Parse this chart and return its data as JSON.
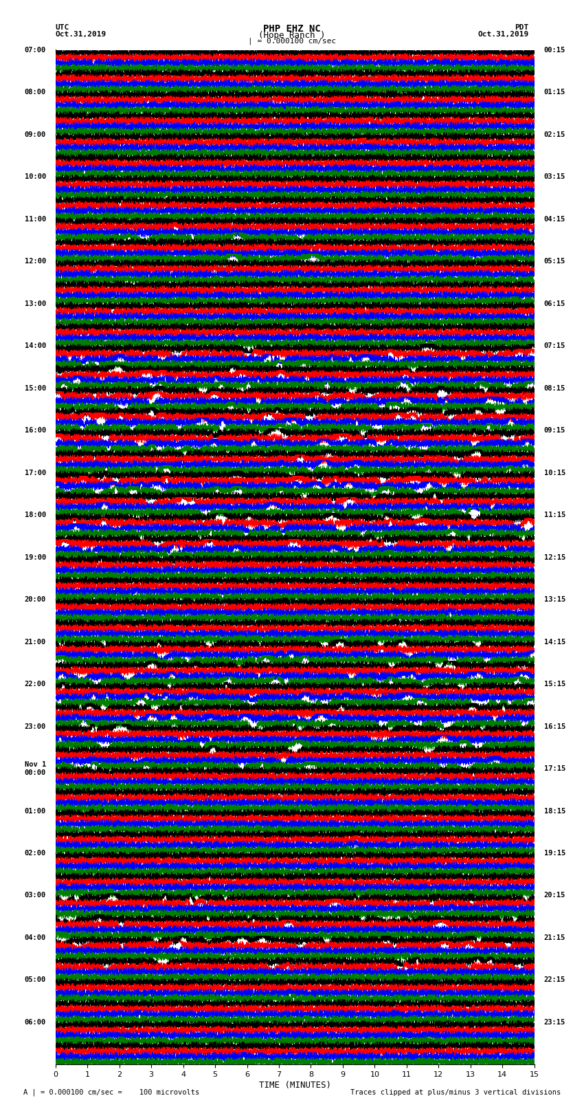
{
  "title_line1": "PHP EHZ NC",
  "title_line2": "(Hope Ranch )",
  "title_line3": "| = 0.000100 cm/sec",
  "label_utc": "UTC",
  "label_date_left": "Oct.31,2019",
  "label_pdt": "PDT",
  "label_date_right": "Oct.31,2019",
  "xlabel": "TIME (MINUTES)",
  "footer_left": "A | = 0.000100 cm/sec =    100 microvolts",
  "footer_right": "Traces clipped at plus/minus 3 vertical divisions",
  "left_times": [
    "07:00",
    "08:00",
    "09:00",
    "10:00",
    "11:00",
    "12:00",
    "13:00",
    "14:00",
    "15:00",
    "16:00",
    "17:00",
    "18:00",
    "19:00",
    "20:00",
    "21:00",
    "22:00",
    "23:00",
    "Nov 1\n00:00",
    "01:00",
    "02:00",
    "03:00",
    "04:00",
    "05:00",
    "06:00"
  ],
  "right_times": [
    "00:15",
    "01:15",
    "02:15",
    "03:15",
    "04:15",
    "05:15",
    "06:15",
    "07:15",
    "08:15",
    "09:15",
    "10:15",
    "11:15",
    "12:15",
    "13:15",
    "14:15",
    "15:15",
    "16:15",
    "17:15",
    "18:15",
    "19:15",
    "20:15",
    "21:15",
    "22:15",
    "23:15"
  ],
  "n_rows": 48,
  "trace_colors": [
    "black",
    "red",
    "blue",
    "green"
  ],
  "fig_bg": "white",
  "plot_bg": "white",
  "xlim": [
    0,
    15
  ],
  "time_minutes": 15,
  "samples_per_row": 9000,
  "base_amp": 0.38,
  "noise_std": 0.18,
  "spike_rows_black": [
    14,
    15,
    16,
    17,
    18,
    19,
    20,
    21,
    22,
    23,
    28,
    29,
    30,
    31,
    32,
    33,
    40,
    41,
    42,
    43
  ],
  "spike_rows_red": [
    14,
    15,
    16,
    17,
    18,
    19,
    20,
    21,
    22,
    23,
    40,
    41,
    42,
    43
  ],
  "spike_rows_blue": [
    14,
    15,
    16,
    17,
    18,
    19,
    20,
    21,
    22,
    23,
    28,
    29,
    30,
    31,
    32,
    33
  ],
  "spike_rows_green": [
    8,
    9,
    14,
    15,
    16,
    17,
    18,
    19,
    20,
    21,
    22,
    23,
    28,
    29,
    30,
    31,
    32,
    33
  ]
}
